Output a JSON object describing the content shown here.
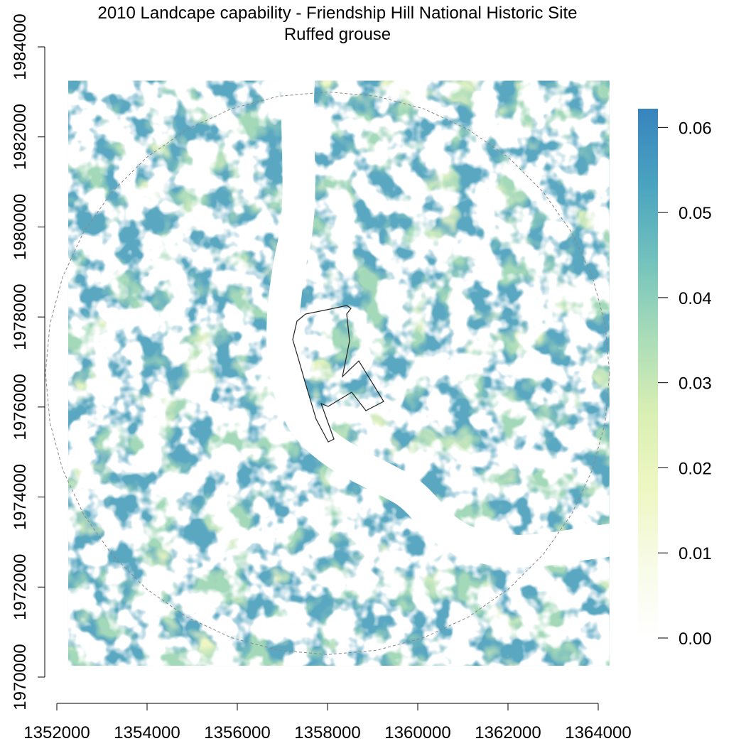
{
  "title_line1": "2010 Landcape capability - Friendship Hill National Historic Site",
  "title_line2": "Ruffed grouse",
  "map": {
    "x_ticks": [
      "1352000",
      "1354000",
      "1356000",
      "1358000",
      "1360000",
      "1362000",
      "1364000"
    ],
    "y_ticks": [
      "1970000",
      "1972000",
      "1974000",
      "1976000",
      "1978000",
      "1980000",
      "1982000",
      "1984000"
    ],
    "x_range": [
      1352000,
      1364000
    ],
    "y_range": [
      1970000,
      1984000
    ],
    "raster_extent": {
      "x": [
        1352250,
        1364250
      ],
      "y": [
        1970250,
        1983250
      ]
    },
    "buffer_center": [
      1358000,
      1976750
    ],
    "buffer_radius": 6250,
    "river_color": "#ffffff",
    "colors": {
      "low": "#ffffff",
      "mid_low": "#f2f9c8",
      "mid": "#e9f5b0",
      "mid_high": "#7fc8b8",
      "high": "#3d88b8"
    }
  },
  "legend": {
    "ticks": [
      "0.00",
      "0.01",
      "0.02",
      "0.03",
      "0.04",
      "0.05",
      "0.06"
    ],
    "range": [
      0,
      0.0622
    ],
    "stops": [
      "#ffffff",
      "#f7fbe6",
      "#eef7c2",
      "#d8efb3",
      "#a8dcb8",
      "#72c2bd",
      "#4aa3c0",
      "#3784bd"
    ]
  }
}
